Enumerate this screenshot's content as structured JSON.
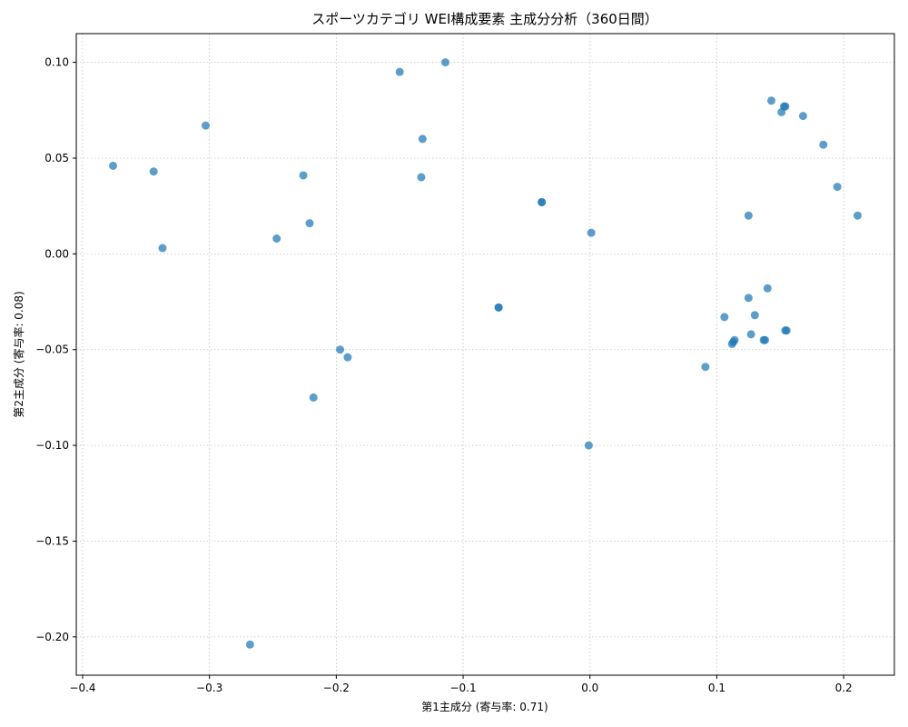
{
  "chart_data": {
    "type": "scatter",
    "title": "スポーツカテゴリ WEI構成要素 主成分分析（360日間）",
    "xlabel": "第1主成分 (寄与率: 0.71)",
    "ylabel": "第2主成分 (寄与率: 0.08)",
    "xlim": [
      -0.405,
      0.24
    ],
    "ylim": [
      -0.22,
      0.115
    ],
    "xticks": [
      -0.4,
      -0.3,
      -0.2,
      -0.1,
      0.0,
      0.1,
      0.2
    ],
    "xtick_labels": [
      "−0.4",
      "−0.3",
      "−0.2",
      "−0.1",
      "0.0",
      "0.1",
      "0.2"
    ],
    "yticks": [
      0.1,
      0.05,
      0.0,
      -0.05,
      -0.1,
      -0.15,
      -0.2
    ],
    "ytick_labels": [
      "0.10",
      "0.05",
      "0.00",
      "−0.05",
      "−0.10",
      "−0.15",
      "−0.20"
    ],
    "grid": true,
    "color": "#1f77b4",
    "points": [
      {
        "x": -0.376,
        "y": 0.046
      },
      {
        "x": -0.344,
        "y": 0.043
      },
      {
        "x": -0.337,
        "y": 0.003
      },
      {
        "x": -0.303,
        "y": 0.067
      },
      {
        "x": -0.247,
        "y": 0.008
      },
      {
        "x": -0.226,
        "y": 0.041
      },
      {
        "x": -0.221,
        "y": 0.016
      },
      {
        "x": -0.218,
        "y": -0.075
      },
      {
        "x": -0.268,
        "y": -0.204
      },
      {
        "x": -0.197,
        "y": -0.05
      },
      {
        "x": -0.191,
        "y": -0.054
      },
      {
        "x": -0.15,
        "y": 0.095
      },
      {
        "x": -0.114,
        "y": 0.1
      },
      {
        "x": -0.132,
        "y": 0.06
      },
      {
        "x": -0.133,
        "y": 0.04
      },
      {
        "x": -0.072,
        "y": -0.028
      },
      {
        "x": -0.072,
        "y": -0.028
      },
      {
        "x": -0.038,
        "y": 0.027
      },
      {
        "x": -0.038,
        "y": 0.027
      },
      {
        "x": 0.001,
        "y": 0.011
      },
      {
        "x": -0.001,
        "y": -0.1
      },
      {
        "x": 0.091,
        "y": -0.059
      },
      {
        "x": 0.106,
        "y": -0.033
      },
      {
        "x": 0.112,
        "y": -0.047
      },
      {
        "x": 0.113,
        "y": -0.046
      },
      {
        "x": 0.114,
        "y": -0.045
      },
      {
        "x": 0.125,
        "y": -0.023
      },
      {
        "x": 0.125,
        "y": 0.02
      },
      {
        "x": 0.127,
        "y": -0.042
      },
      {
        "x": 0.13,
        "y": -0.032
      },
      {
        "x": 0.137,
        "y": -0.045
      },
      {
        "x": 0.138,
        "y": -0.045
      },
      {
        "x": 0.14,
        "y": -0.018
      },
      {
        "x": 0.143,
        "y": 0.08
      },
      {
        "x": 0.151,
        "y": 0.074
      },
      {
        "x": 0.153,
        "y": 0.077
      },
      {
        "x": 0.154,
        "y": 0.077
      },
      {
        "x": 0.154,
        "y": -0.04
      },
      {
        "x": 0.155,
        "y": -0.04
      },
      {
        "x": 0.168,
        "y": 0.072
      },
      {
        "x": 0.184,
        "y": 0.057
      },
      {
        "x": 0.195,
        "y": 0.035
      },
      {
        "x": 0.211,
        "y": 0.02
      }
    ]
  }
}
